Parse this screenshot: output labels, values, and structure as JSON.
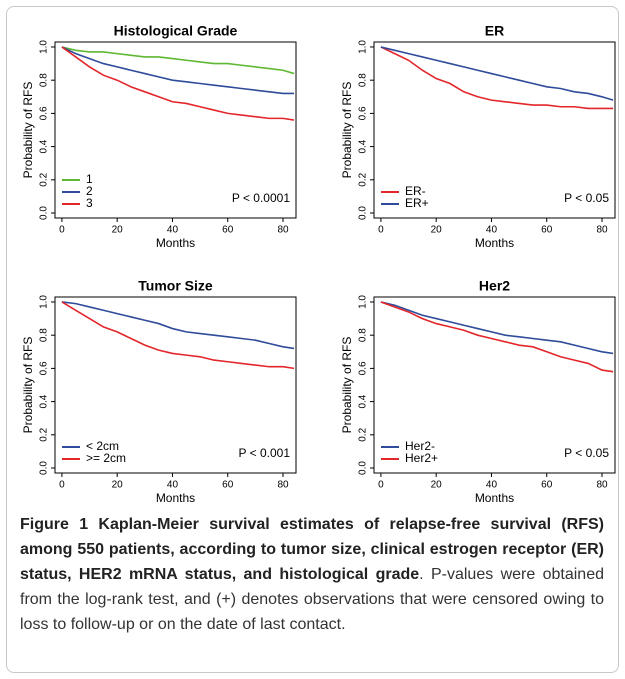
{
  "chart_data": [
    {
      "type": "line",
      "title": "Histological Grade",
      "xlabel": "Months",
      "ylabel": "Probability of RFS",
      "annotation": "P < 0.0001",
      "x": [
        0,
        5,
        10,
        15,
        20,
        25,
        30,
        35,
        40,
        45,
        50,
        55,
        60,
        65,
        70,
        75,
        80,
        84
      ],
      "series": [
        {
          "name": "1",
          "color": "#5fb832",
          "values": [
            1,
            0.98,
            0.97,
            0.97,
            0.96,
            0.95,
            0.94,
            0.94,
            0.93,
            0.92,
            0.91,
            0.9,
            0.9,
            0.89,
            0.88,
            0.87,
            0.86,
            0.84
          ]
        },
        {
          "name": "2",
          "color": "#2f4b9a",
          "values": [
            1,
            0.96,
            0.93,
            0.9,
            0.88,
            0.86,
            0.84,
            0.82,
            0.8,
            0.79,
            0.78,
            0.77,
            0.76,
            0.75,
            0.74,
            0.73,
            0.72,
            0.72
          ]
        },
        {
          "name": "3",
          "color": "#e3262a",
          "values": [
            1,
            0.94,
            0.88,
            0.83,
            0.8,
            0.76,
            0.73,
            0.7,
            0.67,
            0.66,
            0.64,
            0.62,
            0.6,
            0.59,
            0.58,
            0.57,
            0.57,
            0.56
          ]
        }
      ],
      "xlim": [
        -2.5,
        84.7
      ],
      "xticks": [
        0,
        20,
        40,
        60,
        80
      ],
      "ylim": [
        -0.03,
        1.03
      ],
      "yticks": [
        {
          "value": 0,
          "label": "0.0"
        },
        0.2,
        0.4,
        0.6,
        0.8,
        {
          "value": 1,
          "label": "1.0"
        }
      ]
    },
    {
      "type": "line",
      "title": "ER",
      "xlabel": "Months",
      "ylabel": "Probability of RFS",
      "annotation": "P < 0.05",
      "x": [
        0,
        5,
        10,
        15,
        20,
        25,
        30,
        35,
        40,
        45,
        50,
        55,
        60,
        65,
        70,
        75,
        80,
        84
      ],
      "series": [
        {
          "name": "ER-",
          "color": "#e3262a",
          "values": [
            1,
            0.96,
            0.92,
            0.86,
            0.81,
            0.78,
            0.73,
            0.7,
            0.68,
            0.67,
            0.66,
            0.65,
            0.65,
            0.64,
            0.64,
            0.63,
            0.63,
            0.63
          ]
        },
        {
          "name": "ER+",
          "color": "#2f4b9a",
          "values": [
            1,
            0.98,
            0.96,
            0.94,
            0.92,
            0.9,
            0.88,
            0.86,
            0.84,
            0.82,
            0.8,
            0.78,
            0.76,
            0.75,
            0.73,
            0.72,
            0.7,
            0.68
          ]
        }
      ],
      "xlim": [
        -2.5,
        84.7
      ],
      "xticks": [
        0,
        20,
        40,
        60,
        80
      ],
      "ylim": [
        -0.03,
        1.03
      ],
      "yticks": [
        {
          "value": 0,
          "label": "0.0"
        },
        0.2,
        0.4,
        0.6,
        0.8,
        {
          "value": 1,
          "label": "1.0"
        }
      ]
    },
    {
      "type": "line",
      "title": "Tumor Size",
      "xlabel": "Months",
      "ylabel": "Probability of RFS",
      "annotation": "P < 0.001",
      "x": [
        0,
        5,
        10,
        15,
        20,
        25,
        30,
        35,
        40,
        45,
        50,
        55,
        60,
        65,
        70,
        75,
        80,
        84
      ],
      "series": [
        {
          "name": "< 2cm",
          "color": "#2f4b9a",
          "values": [
            1,
            0.99,
            0.97,
            0.95,
            0.93,
            0.91,
            0.89,
            0.87,
            0.84,
            0.82,
            0.81,
            0.8,
            0.79,
            0.78,
            0.77,
            0.75,
            0.73,
            0.72
          ]
        },
        {
          "name": ">= 2cm",
          "color": "#e3262a",
          "values": [
            1,
            0.95,
            0.9,
            0.85,
            0.82,
            0.78,
            0.74,
            0.71,
            0.69,
            0.68,
            0.67,
            0.65,
            0.64,
            0.63,
            0.62,
            0.61,
            0.61,
            0.6
          ]
        }
      ],
      "xlim": [
        -2.5,
        84.7
      ],
      "xticks": [
        0,
        20,
        40,
        60,
        80
      ],
      "ylim": [
        -0.03,
        1.03
      ],
      "yticks": [
        {
          "value": 0,
          "label": "0.0"
        },
        0.2,
        0.4,
        0.6,
        0.8,
        {
          "value": 1,
          "label": "1.0"
        }
      ]
    },
    {
      "type": "line",
      "title": "Her2",
      "xlabel": "Months",
      "ylabel": "Probability of RFS",
      "annotation": "P < 0.05",
      "x": [
        0,
        5,
        10,
        15,
        20,
        25,
        30,
        35,
        40,
        45,
        50,
        55,
        60,
        65,
        70,
        75,
        80,
        84
      ],
      "series": [
        {
          "name": "Her2-",
          "color": "#2f4b9a",
          "values": [
            1,
            0.98,
            0.95,
            0.92,
            0.9,
            0.88,
            0.86,
            0.84,
            0.82,
            0.8,
            0.79,
            0.78,
            0.77,
            0.76,
            0.74,
            0.72,
            0.7,
            0.69
          ]
        },
        {
          "name": "Her2+",
          "color": "#e3262a",
          "values": [
            1,
            0.97,
            0.94,
            0.9,
            0.87,
            0.85,
            0.83,
            0.8,
            0.78,
            0.76,
            0.74,
            0.73,
            0.7,
            0.67,
            0.65,
            0.63,
            0.59,
            0.58
          ]
        }
      ],
      "xlim": [
        -2.5,
        84.7
      ],
      "xticks": [
        0,
        20,
        40,
        60,
        80
      ],
      "ylim": [
        -0.03,
        1.03
      ],
      "yticks": [
        {
          "value": 0,
          "label": "0.0"
        },
        0.2,
        0.4,
        0.6,
        0.8,
        {
          "value": 1,
          "label": "1.0"
        }
      ]
    }
  ],
  "caption": {
    "label": "Figure 1",
    "title": "Kaplan-Meier survival estimates of relapse-free survival (RFS) among 550 patients, according to tumor size, clinical estrogen receptor (ER) status, HER2 mRNA status, and histological grade",
    "text": ". P-values were obtained from the log-rank test, and (+) denotes observations that were censored owing to loss to follow-up or on the date of last contact."
  }
}
